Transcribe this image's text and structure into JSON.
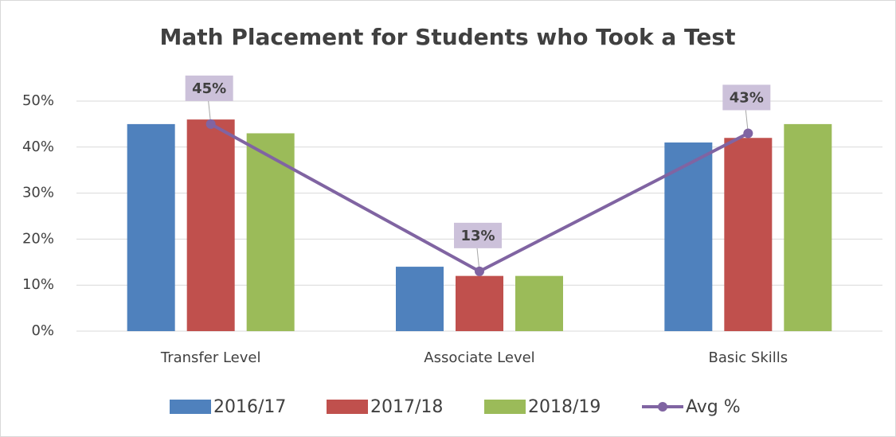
{
  "chart_data": {
    "type": "bar",
    "title": "Math Placement for Students who Took a Test",
    "categories": [
      "Transfer Level",
      "Associate Level",
      "Basic Skills"
    ],
    "series": [
      {
        "name": "2016/17",
        "color": "#4f81bd",
        "values": [
          45,
          14,
          41
        ]
      },
      {
        "name": "2017/18",
        "color": "#c0504d",
        "values": [
          46,
          12,
          42
        ]
      },
      {
        "name": "2018/19",
        "color": "#9bbb59",
        "values": [
          43,
          12,
          45
        ]
      },
      {
        "name": "Avg %",
        "type": "line",
        "color": "#8064a2",
        "values": [
          45,
          13,
          43
        ],
        "value_labels": [
          "45%",
          "13%",
          "43%"
        ]
      }
    ],
    "ylim": [
      0,
      50
    ],
    "yticks": [
      {
        "value": 0,
        "label": "0%"
      },
      {
        "value": 10,
        "label": "10%"
      },
      {
        "value": 20,
        "label": "20%"
      },
      {
        "value": 30,
        "label": "30%"
      },
      {
        "value": 40,
        "label": "40%"
      },
      {
        "value": 50,
        "label": "50%"
      }
    ],
    "grid": true,
    "legend": "bottom"
  }
}
